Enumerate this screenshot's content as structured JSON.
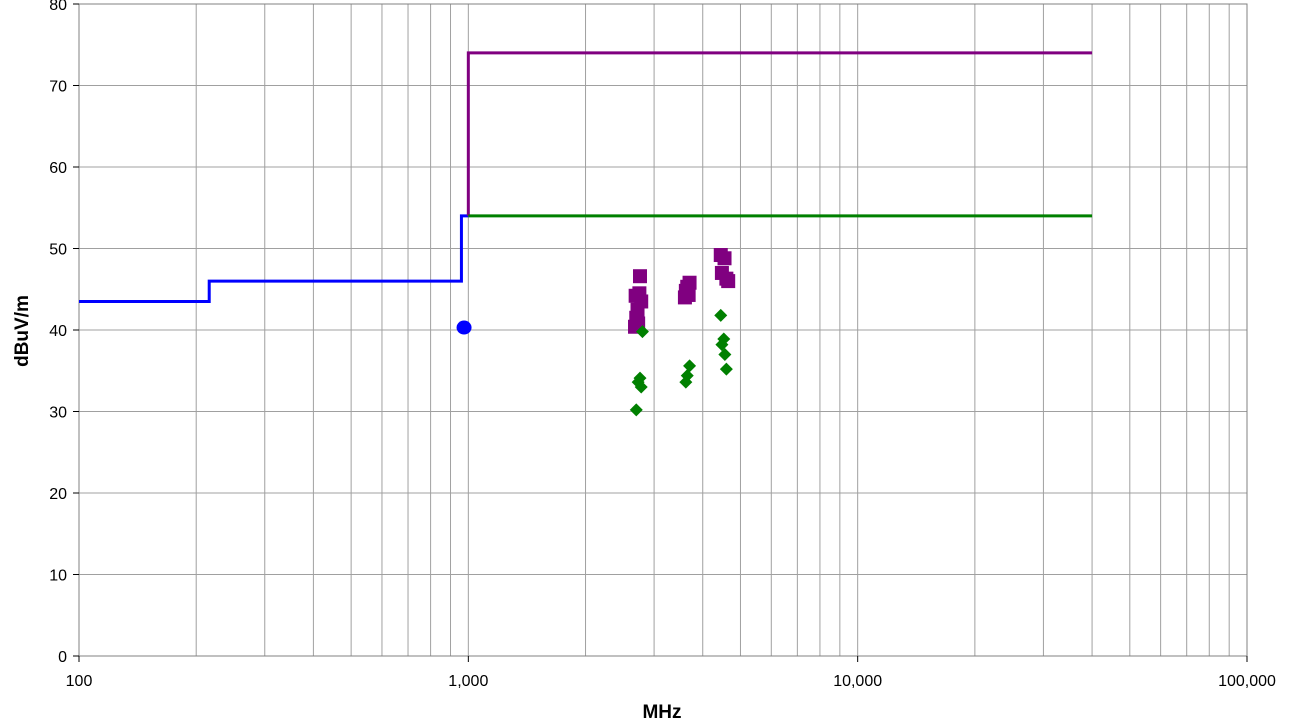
{
  "chart_data": {
    "type": "scatter",
    "xlabel": "MHz",
    "ylabel": "dBuV/m",
    "x_scale": "log",
    "xlim": [
      100,
      100000
    ],
    "ylim": [
      0,
      80
    ],
    "x_ticks": [
      100,
      1000,
      10000,
      100000
    ],
    "x_tick_labels": [
      "100",
      "1,000",
      "10,000",
      "100,000"
    ],
    "y_ticks": [
      0,
      10,
      20,
      30,
      40,
      50,
      60,
      70,
      80
    ],
    "y_tick_labels": [
      "0",
      "10",
      "20",
      "30",
      "40",
      "50",
      "60",
      "70",
      "80"
    ],
    "grid": true,
    "colors": {
      "blue": "#0000ff",
      "purple": "#800080",
      "green": "#008000",
      "grid": "#a0a0a0"
    },
    "lines": [
      {
        "color": "blue",
        "points": [
          [
            100,
            43.5
          ],
          [
            216,
            43.5
          ],
          [
            216,
            46
          ],
          [
            960,
            46
          ],
          [
            960,
            54
          ],
          [
            1000,
            54
          ]
        ]
      },
      {
        "color": "purple",
        "points": [
          [
            1000,
            54
          ],
          [
            1000,
            74
          ],
          [
            40000,
            74
          ]
        ]
      },
      {
        "color": "green",
        "points": [
          [
            1000,
            54
          ],
          [
            40000,
            54
          ]
        ]
      }
    ],
    "scatter_series": [
      {
        "color": "blue",
        "marker": "circle",
        "points": [
          [
            975,
            40.3
          ]
        ]
      },
      {
        "color": "purple",
        "marker": "square",
        "points": [
          [
            2680,
            40.4
          ],
          [
            2700,
            41.5
          ],
          [
            2720,
            42.5
          ],
          [
            2750,
            44.5
          ],
          [
            2760,
            46.6
          ],
          [
            2730,
            40.8
          ],
          [
            2780,
            43.5
          ],
          [
            2690,
            44.2
          ],
          [
            3600,
            44.0
          ],
          [
            3620,
            44.8
          ],
          [
            3650,
            45.3
          ],
          [
            3700,
            45.8
          ],
          [
            3680,
            44.3
          ],
          [
            4450,
            49.2
          ],
          [
            4480,
            47.0
          ],
          [
            4550,
            48.8
          ],
          [
            4600,
            46.3
          ],
          [
            4650,
            46.0
          ]
        ]
      },
      {
        "color": "green",
        "marker": "diamond",
        "points": [
          [
            2700,
            30.2
          ],
          [
            2730,
            33.6
          ],
          [
            2760,
            34.1
          ],
          [
            2780,
            33.0
          ],
          [
            2800,
            39.8
          ],
          [
            3620,
            33.6
          ],
          [
            3650,
            34.4
          ],
          [
            3700,
            35.6
          ],
          [
            4450,
            41.8
          ],
          [
            4480,
            38.2
          ],
          [
            4530,
            38.9
          ],
          [
            4560,
            37.0
          ],
          [
            4600,
            35.2
          ]
        ]
      }
    ]
  }
}
